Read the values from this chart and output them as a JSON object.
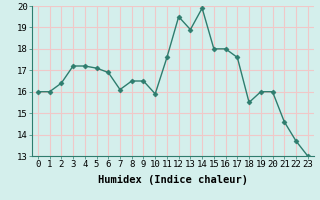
{
  "x": [
    0,
    1,
    2,
    3,
    4,
    5,
    6,
    7,
    8,
    9,
    10,
    11,
    12,
    13,
    14,
    15,
    16,
    17,
    18,
    19,
    20,
    21,
    22,
    23
  ],
  "y": [
    16.0,
    16.0,
    16.4,
    17.2,
    17.2,
    17.1,
    16.9,
    16.1,
    16.5,
    16.5,
    15.9,
    17.6,
    19.5,
    18.9,
    19.9,
    18.0,
    18.0,
    17.6,
    15.5,
    16.0,
    16.0,
    14.6,
    13.7,
    13.0
  ],
  "line_color": "#2e7d6e",
  "marker": "D",
  "marker_size": 2.5,
  "bg_color": "#d4efec",
  "grid_color": "#f0c8c8",
  "xlabel": "Humidex (Indice chaleur)",
  "ylim": [
    13,
    20
  ],
  "xlim": [
    -0.5,
    23.5
  ],
  "yticks": [
    13,
    14,
    15,
    16,
    17,
    18,
    19,
    20
  ],
  "xticks": [
    0,
    1,
    2,
    3,
    4,
    5,
    6,
    7,
    8,
    9,
    10,
    11,
    12,
    13,
    14,
    15,
    16,
    17,
    18,
    19,
    20,
    21,
    22,
    23
  ],
  "tick_fontsize": 6.5,
  "xlabel_fontsize": 7.5
}
